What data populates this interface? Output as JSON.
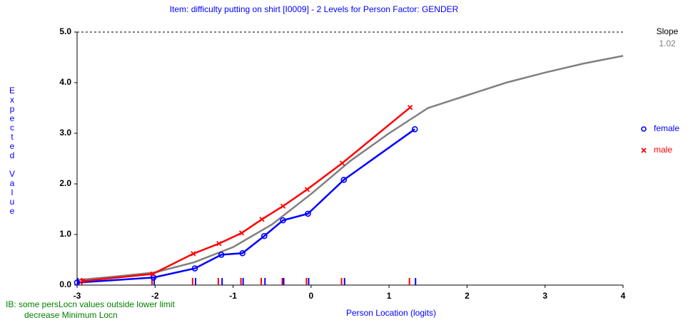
{
  "chart_data": {
    "type": "line",
    "title": "Item: difficulty putting on shirt  [I0009] - 2 Levels for Person Factor: GENDER",
    "xlabel": "Person Location (logits)",
    "ylabel": "Expected Value",
    "xlim": [
      -3,
      4
    ],
    "ylim": [
      0,
      5
    ],
    "xticks": [
      -3,
      -2,
      -1,
      0,
      1,
      2,
      3,
      4
    ],
    "yticks": [
      {
        "value": 0,
        "label": "0.0"
      },
      {
        "value": 1,
        "label": "1.0"
      },
      {
        "value": 2,
        "label": "2.0"
      },
      {
        "value": 3,
        "label": "3.0"
      },
      {
        "value": 4,
        "label": "4.0"
      },
      {
        "value": 5,
        "label": "5.0"
      }
    ],
    "slope_label": "Slope",
    "slope": 1.02,
    "note": [
      "IB: some persLocn values outside lower limit",
      "decrease Minimum Locn"
    ],
    "model_curve": {
      "color": "#808080",
      "x": [
        -3,
        -2.5,
        -2,
        -1.5,
        -1,
        -0.5,
        0,
        0.5,
        1,
        1.5,
        2,
        2.5,
        3,
        3.5,
        4
      ],
      "values": [
        0.1,
        0.17,
        0.25,
        0.45,
        0.75,
        1.2,
        1.8,
        2.45,
        3.0,
        3.5,
        3.75,
        4.0,
        4.2,
        4.38,
        4.53
      ]
    },
    "series": [
      {
        "name": "female",
        "color": "#0000ff",
        "marker": "circle",
        "x": [
          -3.0,
          -2.02,
          -1.49,
          -1.15,
          -0.88,
          -0.6,
          -0.36,
          -0.04,
          0.42,
          1.33
        ],
        "values": [
          0.05,
          0.15,
          0.33,
          0.6,
          0.63,
          0.97,
          1.28,
          1.41,
          2.08,
          3.08
        ]
      },
      {
        "name": "male",
        "color": "#ff0000",
        "marker": "cross",
        "x": [
          -2.93,
          -2.03,
          -1.51,
          -1.18,
          -0.89,
          -0.63,
          -0.36,
          -0.05,
          0.4,
          1.27
        ],
        "values": [
          0.08,
          0.22,
          0.62,
          0.82,
          1.03,
          1.3,
          1.56,
          1.89,
          2.41,
          3.51
        ]
      }
    ]
  }
}
